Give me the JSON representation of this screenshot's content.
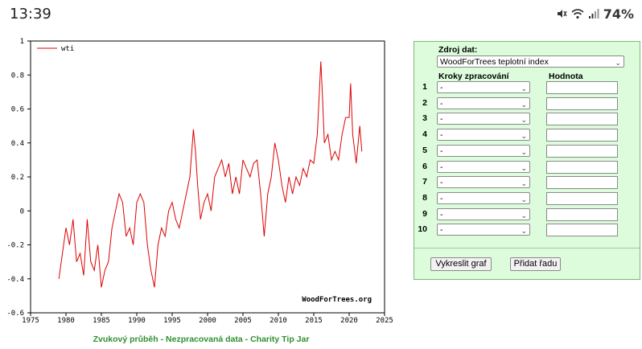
{
  "status_bar": {
    "time": "13:39",
    "battery": "74%"
  },
  "chart_data": {
    "type": "line",
    "series": [
      {
        "name": "wti",
        "color": "#dd0000",
        "x": [
          1979.0,
          1979.5,
          1980.0,
          1980.5,
          1981.0,
          1981.5,
          1982.0,
          1982.5,
          1983.0,
          1983.5,
          1984.0,
          1984.5,
          1985.0,
          1985.5,
          1986.0,
          1986.5,
          1987.0,
          1987.5,
          1988.0,
          1988.5,
          1989.0,
          1989.5,
          1990.0,
          1990.5,
          1991.0,
          1991.5,
          1992.0,
          1992.5,
          1993.0,
          1993.5,
          1994.0,
          1994.5,
          1995.0,
          1995.5,
          1996.0,
          1996.5,
          1997.0,
          1997.5,
          1998.0,
          1998.3,
          1998.6,
          1999.0,
          1999.5,
          2000.0,
          2000.5,
          2001.0,
          2001.5,
          2002.0,
          2002.5,
          2003.0,
          2003.5,
          2004.0,
          2004.5,
          2005.0,
          2005.5,
          2006.0,
          2006.5,
          2007.0,
          2007.5,
          2008.0,
          2008.5,
          2009.0,
          2009.5,
          2010.0,
          2010.5,
          2011.0,
          2011.5,
          2012.0,
          2012.5,
          2013.0,
          2013.5,
          2014.0,
          2014.5,
          2015.0,
          2015.5,
          2016.0,
          2016.2,
          2016.5,
          2017.0,
          2017.5,
          2018.0,
          2018.5,
          2019.0,
          2019.5,
          2020.0,
          2020.2,
          2020.5,
          2021.0,
          2021.5,
          2021.8
        ],
        "values": [
          -0.4,
          -0.25,
          -0.1,
          -0.2,
          -0.05,
          -0.3,
          -0.25,
          -0.38,
          -0.05,
          -0.3,
          -0.35,
          -0.2,
          -0.45,
          -0.35,
          -0.3,
          -0.1,
          0.0,
          0.1,
          0.05,
          -0.15,
          -0.1,
          -0.2,
          0.05,
          0.1,
          0.05,
          -0.2,
          -0.35,
          -0.45,
          -0.2,
          -0.1,
          -0.15,
          0.0,
          0.05,
          -0.05,
          -0.1,
          0.0,
          0.1,
          0.2,
          0.48,
          0.35,
          0.15,
          -0.05,
          0.05,
          0.1,
          0.0,
          0.2,
          0.25,
          0.3,
          0.2,
          0.28,
          0.1,
          0.2,
          0.1,
          0.3,
          0.25,
          0.2,
          0.28,
          0.3,
          0.1,
          -0.15,
          0.1,
          0.2,
          0.4,
          0.3,
          0.15,
          0.05,
          0.2,
          0.1,
          0.2,
          0.15,
          0.25,
          0.2,
          0.3,
          0.28,
          0.45,
          0.88,
          0.7,
          0.4,
          0.45,
          0.3,
          0.35,
          0.3,
          0.45,
          0.55,
          0.55,
          0.75,
          0.45,
          0.28,
          0.5,
          0.35
        ]
      }
    ],
    "xlim": [
      1975,
      2025
    ],
    "ylim": [
      -0.6,
      1
    ],
    "x_ticks": [
      1975,
      1980,
      1985,
      1990,
      1995,
      2000,
      2005,
      2010,
      2015,
      2020,
      2025
    ],
    "y_ticks": [
      "1",
      "0.8",
      "0.6",
      "0.4",
      "0.2",
      "0",
      "-0.2",
      "-0.4",
      "-0.6"
    ],
    "watermark": "WoodForTrees.org",
    "legend_position": "top-left",
    "grid": false
  },
  "panel": {
    "source_label": "Zdroj dat:",
    "source_value": "WoodForTrees teplotní index",
    "steps_header": "Kroky zpracování",
    "value_header": "Hodnota",
    "rows": [
      {
        "num": "1",
        "step": "-"
      },
      {
        "num": "2",
        "step": "-"
      },
      {
        "num": "3",
        "step": "-"
      },
      {
        "num": "4",
        "step": "-"
      },
      {
        "num": "5",
        "step": "-"
      },
      {
        "num": "6",
        "step": "-"
      },
      {
        "num": "7",
        "step": "-"
      },
      {
        "num": "8",
        "step": "-"
      },
      {
        "num": "9",
        "step": "-"
      },
      {
        "num": "10",
        "step": "-"
      }
    ],
    "plot_button": "Vykreslit graf",
    "add_button": "Přidat řadu"
  },
  "footer": {
    "link1": "Zvukový průběh",
    "sep1": " - ",
    "link2": "Nezpracovaná data",
    "sep2": " - ",
    "link3": "Charity Tip Jar"
  }
}
